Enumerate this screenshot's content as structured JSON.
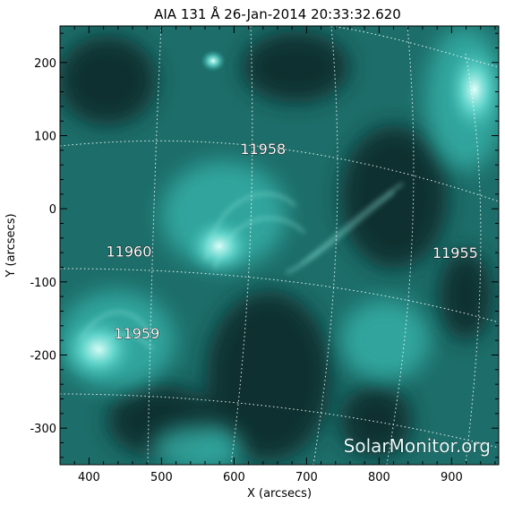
{
  "title": "AIA 131 Å 26-Jan-2014 20:33:32.620",
  "axes": {
    "xlabel": "X (arcsecs)",
    "ylabel": "Y (arcsecs)",
    "xlim": [
      360,
      965
    ],
    "ylim": [
      -350,
      250
    ],
    "xticks": [
      400,
      500,
      600,
      700,
      800,
      900
    ],
    "yticks": [
      200,
      100,
      0,
      -100,
      -200,
      -300
    ]
  },
  "regions": [
    {
      "label": "11958",
      "x": 640,
      "y": 82
    },
    {
      "label": "11960",
      "x": 455,
      "y": -58
    },
    {
      "label": "11955",
      "x": 905,
      "y": -60
    },
    {
      "label": "11959",
      "x": 466,
      "y": -170
    }
  ],
  "watermark": "SolarMonitor.org",
  "colors": {
    "background": "#ffffff",
    "frame": "#000000",
    "image_dark": "#0c2e2e",
    "image_mid": "#2aa69e",
    "image_bright": "#c8fff6",
    "grid": "#ffffff",
    "label": "#ffffff"
  }
}
